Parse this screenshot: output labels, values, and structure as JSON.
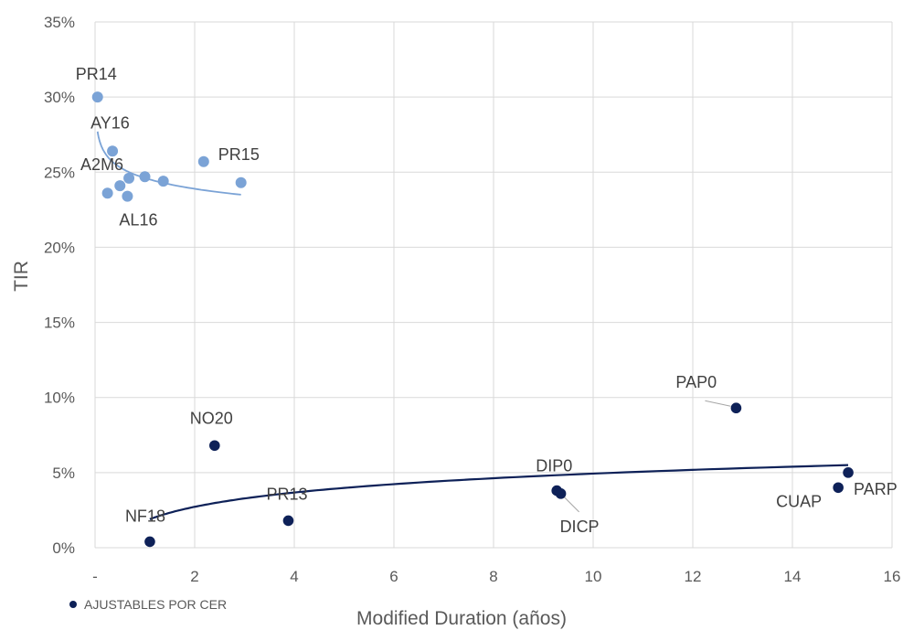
{
  "chart_data": {
    "type": "scatter",
    "xlabel": "Modified Duration (años)",
    "ylabel": "TIR",
    "xlim": [
      0,
      16
    ],
    "ylim": [
      0,
      0.35
    ],
    "x_ticks": [
      {
        "value": 0,
        "label": "-"
      },
      {
        "value": 2,
        "label": "2"
      },
      {
        "value": 4,
        "label": "4"
      },
      {
        "value": 6,
        "label": "6"
      },
      {
        "value": 8,
        "label": "8"
      },
      {
        "value": 10,
        "label": "10"
      },
      {
        "value": 12,
        "label": "12"
      },
      {
        "value": 14,
        "label": "14"
      },
      {
        "value": 16,
        "label": "16"
      }
    ],
    "y_ticks": [
      {
        "value": 0,
        "label": "0%"
      },
      {
        "value": 0.05,
        "label": "5%"
      },
      {
        "value": 0.1,
        "label": "10%"
      },
      {
        "value": 0.15,
        "label": "15%"
      },
      {
        "value": 0.2,
        "label": "20%"
      },
      {
        "value": 0.25,
        "label": "25%"
      },
      {
        "value": 0.3,
        "label": "30%"
      },
      {
        "value": 0.35,
        "label": "35%"
      }
    ],
    "grid": true,
    "legend": {
      "position": "bottom-left",
      "entries": [
        {
          "series": "cer",
          "label": "AJUSTABLES POR CER"
        }
      ]
    },
    "series": [
      {
        "id": "dollar",
        "color": "#7ba3d6",
        "points": [
          {
            "x": 0.05,
            "y": 0.3,
            "label": "PR14"
          },
          {
            "x": 0.35,
            "y": 0.264,
            "label": "AY16"
          },
          {
            "x": 0.25,
            "y": 0.236,
            "label": ""
          },
          {
            "x": 0.5,
            "y": 0.241,
            "label": ""
          },
          {
            "x": 0.68,
            "y": 0.246,
            "label": "A2M6"
          },
          {
            "x": 0.65,
            "y": 0.234,
            "label": "AL16"
          },
          {
            "x": 1.0,
            "y": 0.247,
            "label": ""
          },
          {
            "x": 1.37,
            "y": 0.244,
            "label": ""
          },
          {
            "x": 2.18,
            "y": 0.257,
            "label": "PR15"
          },
          {
            "x": 2.93,
            "y": 0.243,
            "label": ""
          }
        ],
        "trendline": {
          "type": "logarithmic",
          "x_range": [
            0.05,
            2.93
          ],
          "y_start": 0.277,
          "y_end": 0.235
        }
      },
      {
        "id": "cer",
        "name": "AJUSTABLES POR CER",
        "color": "#0e2158",
        "points": [
          {
            "x": 1.1,
            "y": 0.004,
            "label": "NF18"
          },
          {
            "x": 2.4,
            "y": 0.068,
            "label": "NO20"
          },
          {
            "x": 3.88,
            "y": 0.018,
            "label": "PR13"
          },
          {
            "x": 9.27,
            "y": 0.038,
            "label": "DIP0"
          },
          {
            "x": 9.35,
            "y": 0.036,
            "label": "DICP"
          },
          {
            "x": 12.87,
            "y": 0.093,
            "label": "PAP0"
          },
          {
            "x": 14.92,
            "y": 0.04,
            "label": "CUAP"
          },
          {
            "x": 15.12,
            "y": 0.05,
            "label": "PARP"
          }
        ],
        "trendline": {
          "type": "logarithmic",
          "x_range": [
            1.1,
            15.12
          ],
          "y_start": 0.019,
          "y_end": 0.055
        }
      }
    ]
  }
}
